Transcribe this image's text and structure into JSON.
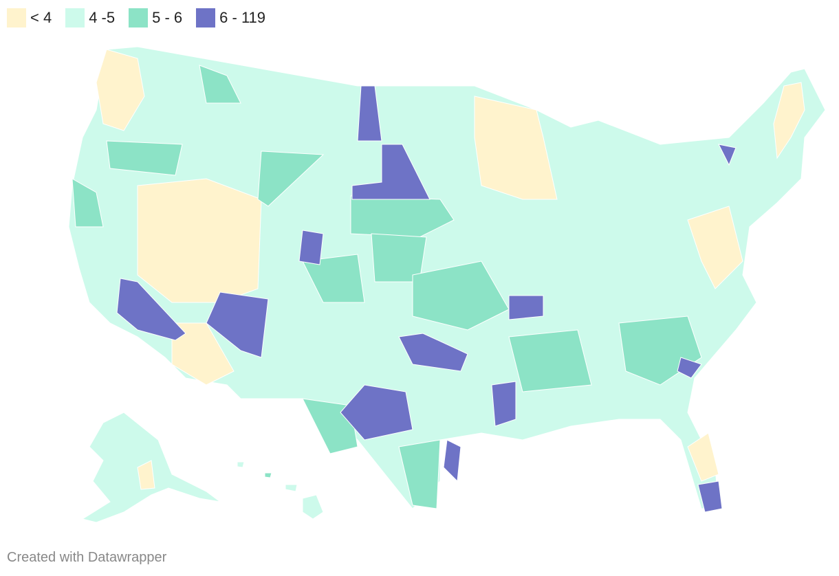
{
  "legend": {
    "items": [
      {
        "label": "< 4",
        "color": "#fff3cd"
      },
      {
        "label": "4 -5",
        "color": "#cdfaeb"
      },
      {
        "label": "5 - 6",
        "color": "#8ce3c6"
      },
      {
        "label": "6 - 119",
        "color": "#6e73c6"
      }
    ]
  },
  "footer": "Created with Datawrapper"
}
